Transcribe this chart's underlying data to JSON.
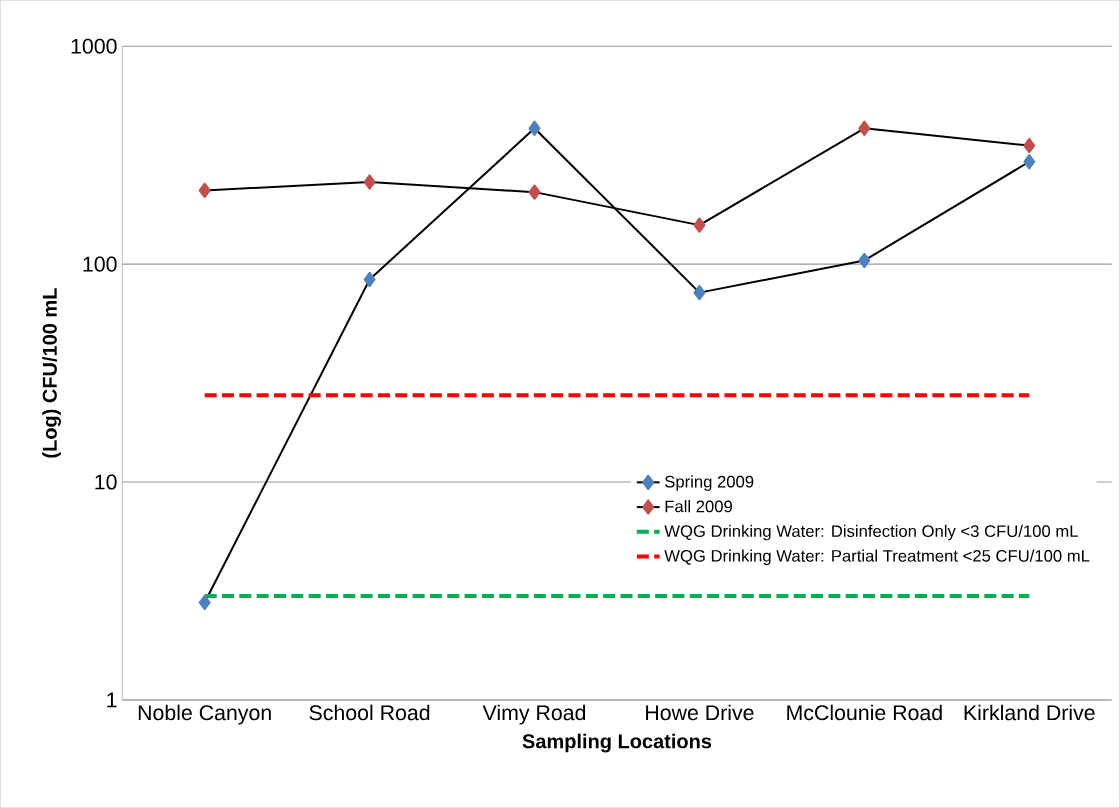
{
  "chart_data": {
    "type": "line",
    "xlabel": "Sampling Locations",
    "ylabel": "(Log) CFU/100 mL",
    "categories": [
      "Noble Canyon",
      "School Road",
      "Vimy Road",
      "Howe Drive",
      "McClounie Road",
      "Kirkland Drive"
    ],
    "series": [
      {
        "name": "Spring 2009",
        "color": "#4f81bd",
        "marker": "diamond",
        "values": [
          2.8,
          85,
          420,
          74,
          104,
          295
        ]
      },
      {
        "name": "Fall 2009",
        "color": "#c0504d",
        "marker": "diamond",
        "values": [
          218,
          238,
          214,
          151,
          420,
          350
        ]
      }
    ],
    "ref_lines": [
      {
        "axis": "y",
        "value": 3,
        "label": "WQG Drinking Water: Disinfection Only <3 CFU/100 mL",
        "color": "#00b050",
        "line_style": "dashed"
      },
      {
        "axis": "y",
        "value": 25,
        "label": "WQG Drinking Water: Partial Treatment <25 CFU/100 mL",
        "color": "#ff0000",
        "line_style": "dashed"
      }
    ],
    "log": "y",
    "ylim": [
      1,
      1000
    ],
    "yticks": [
      1,
      10,
      100,
      1000
    ],
    "grid": "y",
    "legend": "bottom right"
  }
}
